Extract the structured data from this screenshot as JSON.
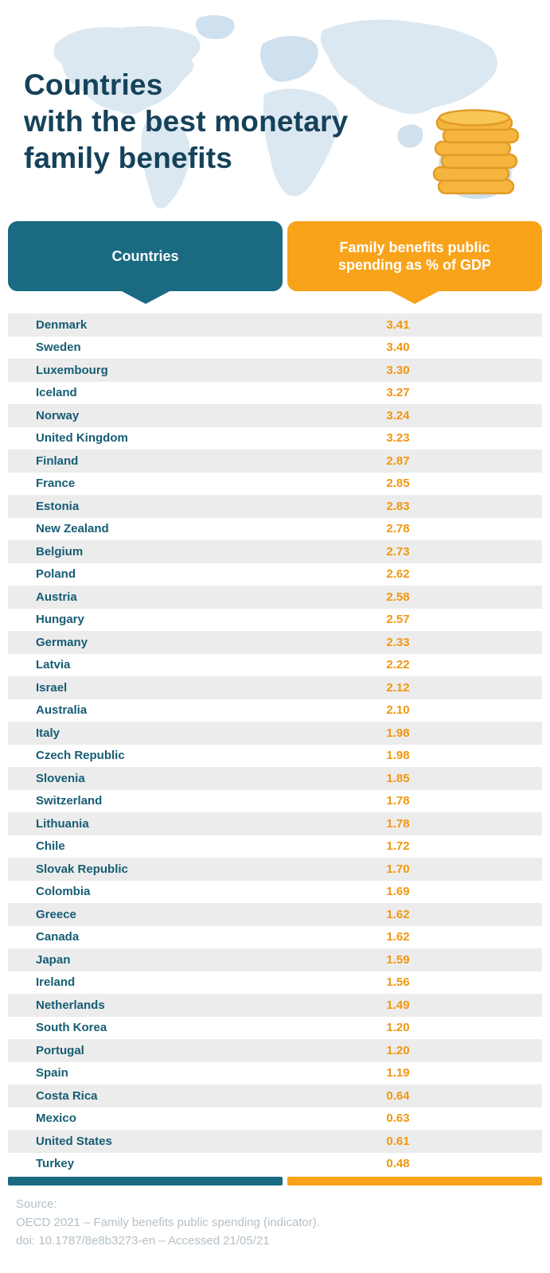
{
  "header": {
    "title_lines": [
      "Countries",
      "with the best monetary",
      "family benefits"
    ]
  },
  "table": {
    "header_countries": "Countries",
    "header_value": "Family benefits public spending as % of GDP"
  },
  "chart_data": {
    "type": "table",
    "title": "Countries with the best monetary family benefits",
    "columns": [
      "Countries",
      "Family benefits public spending as % of GDP"
    ],
    "categories": [
      "Denmark",
      "Sweden",
      "Luxembourg",
      "Iceland",
      "Norway",
      "United Kingdom",
      "Finland",
      "France",
      "Estonia",
      "New Zealand",
      "Belgium",
      "Poland",
      "Austria",
      "Hungary",
      "Germany",
      "Latvia",
      "Israel",
      "Australia",
      "Italy",
      "Czech Republic",
      "Slovenia",
      "Switzerland",
      "Lithuania",
      "Chile",
      "Slovak Republic",
      "Colombia",
      "Greece",
      "Canada",
      "Japan",
      "Ireland",
      "Netherlands",
      "South Korea",
      "Portugal",
      "Spain",
      "Costa Rica",
      "Mexico",
      "United States",
      "Turkey"
    ],
    "values": [
      3.41,
      3.4,
      3.3,
      3.27,
      3.24,
      3.23,
      2.87,
      2.85,
      2.83,
      2.78,
      2.73,
      2.62,
      2.58,
      2.57,
      2.33,
      2.22,
      2.12,
      2.1,
      1.98,
      1.98,
      1.85,
      1.78,
      1.78,
      1.72,
      1.7,
      1.69,
      1.62,
      1.62,
      1.59,
      1.56,
      1.49,
      1.2,
      1.2,
      1.19,
      0.64,
      0.63,
      0.61,
      0.48
    ],
    "value_unit": "% of GDP"
  },
  "footer": {
    "source_label": "Source:",
    "line1": "OECD 2021 – Family benefits public spending (indicator).",
    "line2": "doi: 10.1787/8e8b3273-en – Accessed 21/05/21"
  },
  "icons": {
    "coin_stack": "coin-stack-icon",
    "world_map": "world-map-background"
  },
  "colors": {
    "teal": "#1a6b82",
    "orange": "#f8a31a",
    "title": "#15425a",
    "country_text": "#165d74",
    "value_text": "#f0970f",
    "row_alt": "#ececec",
    "map": "#dbe8f2",
    "footer_text": "#b4c0c8",
    "coin_fill": "#f5b53e",
    "coin_stroke": "#e19b26"
  }
}
